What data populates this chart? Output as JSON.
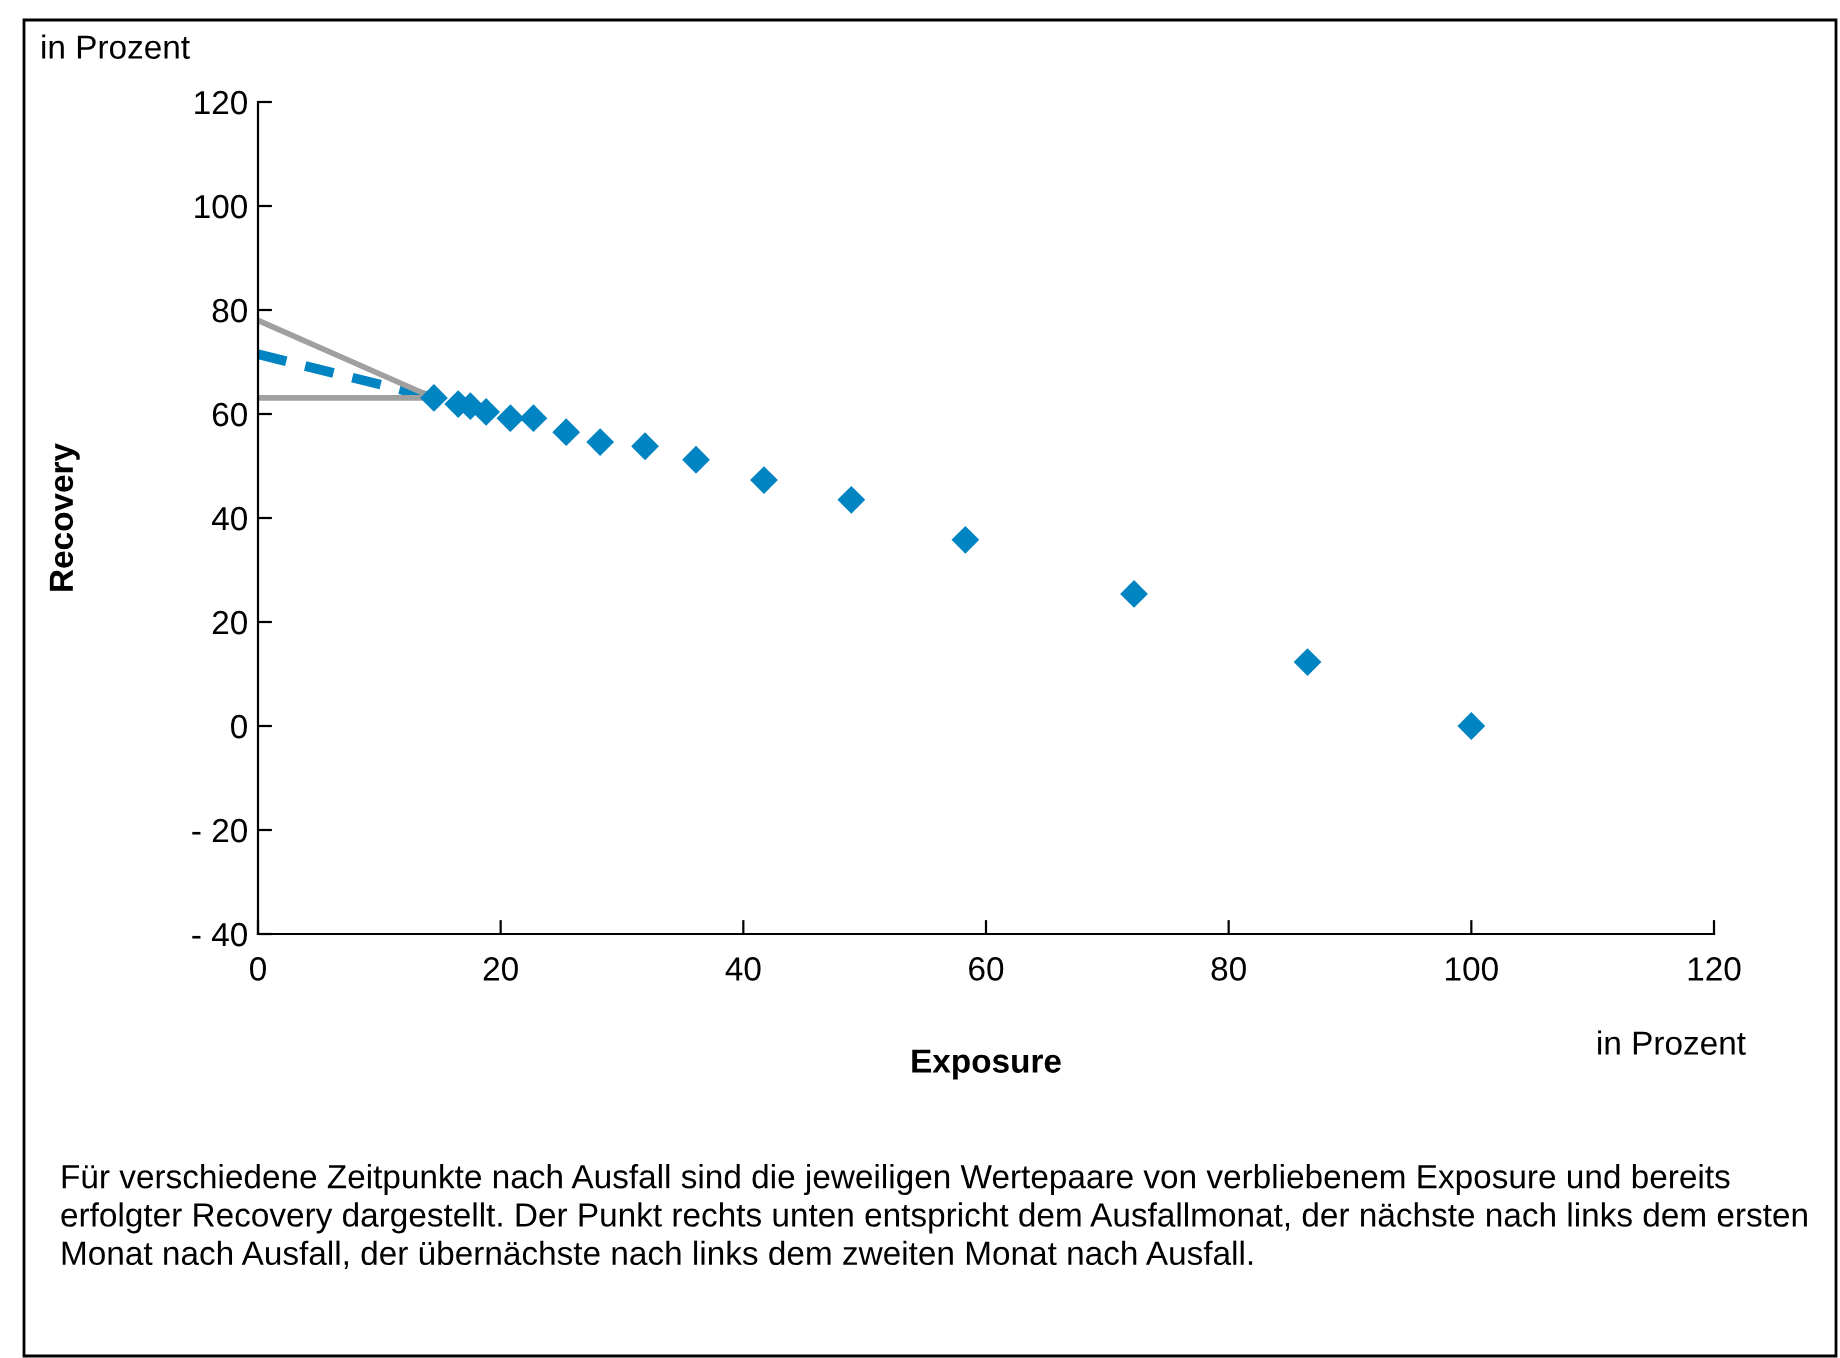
{
  "chart_data": {
    "type": "scatter",
    "xlabel": "Exposure",
    "ylabel": "Recovery",
    "annotations": [
      "in Prozent",
      "in Prozent",
      "Für verschiedene Zeitpunkte nach Ausfall sind die jeweiligen Wertepaare von verbliebenem Exposure und bereits erfolgter Recovery dargestellt. Der Punkt rechts unten entspricht dem Ausfallmonat, der nächste nach links dem ersten Monat nach Ausfall, der übernächste nach links dem zweiten Monat nach Ausfall."
    ],
    "series": [
      {
        "color": "#0084c2",
        "marker": "diamond",
        "x": [
          14.5,
          16.5,
          17.5,
          18.8,
          20.8,
          22.7,
          25.4,
          28.2,
          31.9,
          36.1,
          41.7,
          48.9,
          58.3,
          72.2,
          86.5,
          100
        ],
        "values": [
          63.1,
          61.9,
          61.5,
          60.4,
          59.2,
          59.2,
          56.5,
          54.6,
          53.8,
          51.2,
          47.3,
          43.5,
          35.8,
          25.4,
          12.3,
          0
        ]
      },
      {
        "type": "line",
        "color": "#0084c2",
        "line_style": "dashed",
        "x": [
          0,
          14.5
        ],
        "values": [
          71.5,
          63.1
        ]
      },
      {
        "type": "line",
        "color": "#a0a0a0",
        "line_style": "solid",
        "x": [
          0,
          14.5
        ],
        "values": [
          78,
          63.1
        ]
      },
      {
        "type": "line",
        "color": "#a0a0a0",
        "line_style": "solid",
        "x": [
          0,
          14.5
        ],
        "values": [
          63.1,
          63.1
        ]
      }
    ],
    "xlim": [
      0,
      120
    ],
    "xticks": [
      0,
      20,
      40,
      60,
      80,
      100,
      120
    ],
    "ylim": [
      -40,
      120
    ],
    "yticks": [
      {
        "value": -40,
        "label": "- 40"
      },
      {
        "value": -20,
        "label": "- 20"
      },
      0,
      20,
      40,
      60,
      80,
      100,
      120
    ],
    "grid": false,
    "legend": false
  }
}
